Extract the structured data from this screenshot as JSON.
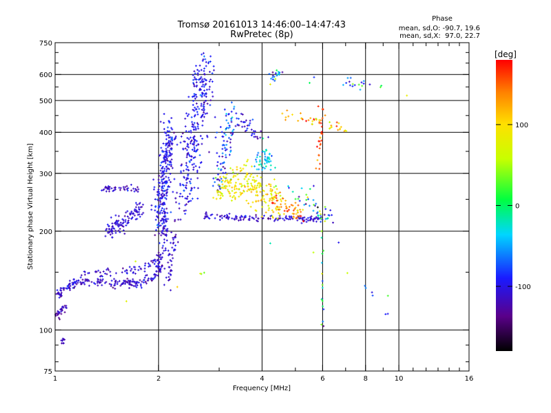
{
  "chart_data": {
    "type": "scatter",
    "title": "Tromsø 20161013 14:46:00–14:47:43",
    "subtitle": "RwPretec (8p)",
    "xlabel": "Frequency [MHz]",
    "ylabel": "Stationary phase Virtual Height [km]",
    "x_scale": "log",
    "y_scale": "log",
    "xlim": [
      1,
      16
    ],
    "ylim": [
      75,
      750
    ],
    "x_ticks": [
      1,
      2,
      4,
      6,
      8,
      10,
      16
    ],
    "x_tick_labels": [
      "1",
      "2",
      "4",
      "6",
      "8",
      "10",
      "16"
    ],
    "x_minor_ticks": [
      3,
      5,
      7,
      9,
      11,
      12,
      13,
      14,
      15
    ],
    "y_ticks": [
      75,
      100,
      200,
      300,
      400,
      500,
      600,
      750
    ],
    "y_tick_labels": [
      "75",
      "100",
      "200",
      "300",
      "400",
      "500",
      "600",
      "750"
    ],
    "y_minor_ticks": [
      80,
      90,
      150,
      250,
      350,
      450,
      550,
      650,
      700
    ],
    "grid_x": [
      2,
      4,
      6,
      8,
      10
    ],
    "grid_y": [
      100,
      200,
      300,
      400,
      500,
      600
    ],
    "phase_stats": {
      "header": "Phase",
      "line_o": "mean, sd,O: -90.7, 19.6",
      "line_x": "mean, sd,X:  97.0, 22.7"
    },
    "colorbar": {
      "label": "[deg]",
      "range": [
        -180,
        180
      ],
      "ticks": [
        100,
        0,
        -100
      ],
      "tick_labels": [
        "100",
        "0",
        "-100"
      ]
    },
    "traces": [
      {
        "name": "low-O-trace",
        "x": [
          1.01,
          1.04,
          1.08,
          1.12,
          1.18,
          1.25,
          1.35,
          1.45,
          1.55,
          1.65,
          1.75,
          1.85,
          1.92,
          1.97,
          2.0,
          2.02,
          2.04,
          2.06,
          2.07,
          2.08,
          2.09
        ],
        "y": [
          128,
          130,
          135,
          140,
          140,
          140,
          140,
          139,
          139,
          139,
          139,
          141,
          144,
          147,
          152,
          158,
          168,
          180,
          195,
          210,
          230
        ],
        "phase": -110,
        "sd": 12,
        "n": 260,
        "jx": 0.015,
        "jy": 0.015
      },
      {
        "name": "low-O-start",
        "x": [
          1.01,
          1.03,
          1.05,
          1.08
        ],
        "y": [
          110,
          112,
          115,
          119
        ],
        "phase": -120,
        "sd": 12,
        "n": 30,
        "jx": 0.01,
        "jy": 0.02
      },
      {
        "name": "low-O-dots",
        "x": [
          1.05,
          1.06,
          1.07
        ],
        "y": [
          91,
          93,
          95
        ],
        "phase": -120,
        "sd": 8,
        "n": 10,
        "jx": 0.005,
        "jy": 0.01
      },
      {
        "name": "upper-envelope",
        "x": [
          1.1,
          1.2,
          1.3,
          1.4,
          1.5,
          1.6,
          1.7,
          1.8,
          1.9,
          1.96,
          2.0
        ],
        "y": [
          137,
          145,
          150,
          150,
          150,
          151,
          152,
          155,
          158,
          162,
          168
        ],
        "phase": -110,
        "sd": 12,
        "n": 70,
        "jx": 0.01,
        "jy": 0.015
      },
      {
        "name": "E-cusp-O",
        "x": [
          2.12,
          2.17,
          2.22,
          2.28
        ],
        "y": [
          140,
          160,
          190,
          240
        ],
        "phase": -110,
        "sd": 12,
        "n": 45,
        "jx": 0.01,
        "jy": 0.04
      },
      {
        "name": "blob-210",
        "x": [
          1.42,
          1.46,
          1.52,
          1.58,
          1.65,
          1.72,
          1.8
        ],
        "y": [
          200,
          204,
          208,
          212,
          218,
          226,
          236
        ],
        "phase": -110,
        "sd": 10,
        "n": 110,
        "jx": 0.015,
        "jy": 0.03
      },
      {
        "name": "blob-270",
        "x": [
          1.38,
          1.45,
          1.55,
          1.65,
          1.75
        ],
        "y": [
          268,
          270,
          270,
          270,
          268
        ],
        "phase": -115,
        "sd": 10,
        "n": 45,
        "jx": 0.01,
        "jy": 0.01
      },
      {
        "name": "F-cusp-O-lower",
        "x": [
          2.0,
          2.04,
          2.08,
          2.12,
          2.16
        ],
        "y": [
          210,
          250,
          300,
          350,
          400
        ],
        "phase": -100,
        "sd": 15,
        "n": 260,
        "jx": 0.025,
        "jy": 0.06
      },
      {
        "name": "F-cusp-O-upper",
        "x": [
          2.4,
          2.45,
          2.5,
          2.55,
          2.6,
          2.68,
          2.75
        ],
        "y": [
          240,
          300,
          360,
          420,
          500,
          580,
          650
        ],
        "phase": -100,
        "sd": 15,
        "n": 300,
        "jx": 0.04,
        "jy": 0.06
      },
      {
        "name": "F-cusp-X-base",
        "x": [
          2.7,
          3.0,
          3.3,
          3.6,
          4.0,
          4.5,
          5.0,
          5.5,
          6.0
        ],
        "y": [
          222,
          222,
          220,
          219,
          219,
          218,
          218,
          218,
          218
        ],
        "phase": -110,
        "sd": 12,
        "n": 140,
        "jx": 0.01,
        "jy": 0.01
      },
      {
        "name": "F-cusp-X-top",
        "x": [
          3.0,
          3.05,
          3.1,
          3.15,
          3.2,
          3.3
        ],
        "y": [
          260,
          300,
          340,
          380,
          420,
          480
        ],
        "phase": -80,
        "sd": 30,
        "n": 90,
        "jx": 0.03,
        "jy": 0.05
      },
      {
        "name": "yellow-X-band",
        "x": [
          3.0,
          3.2,
          3.4,
          3.6,
          3.8,
          4.0,
          4.3,
          4.5
        ],
        "y": [
          260,
          270,
          280,
          290,
          270,
          260,
          250,
          245
        ],
        "phase": 90,
        "sd": 20,
        "n": 220,
        "jx": 0.03,
        "jy": 0.06
      },
      {
        "name": "orange-F2-X",
        "x": [
          4.3,
          4.6,
          5.0,
          5.3
        ],
        "y": [
          250,
          240,
          230,
          225
        ],
        "phase": 140,
        "sd": 25,
        "n": 50,
        "jx": 0.02,
        "jy": 0.03
      },
      {
        "name": "cyan-X-cluster",
        "x": [
          3.9,
          4.0,
          4.1,
          4.2
        ],
        "y": [
          320,
          330,
          340,
          310
        ],
        "phase": -40,
        "sd": 25,
        "n": 50,
        "jx": 0.02,
        "jy": 0.04
      },
      {
        "name": "high-blue-line",
        "x": [
          3.2,
          3.4,
          3.6,
          3.8,
          4.0
        ],
        "y": [
          445,
          440,
          420,
          400,
          380
        ],
        "phase": -100,
        "sd": 20,
        "n": 40,
        "jx": 0.02,
        "jy": 0.02
      },
      {
        "name": "upper-X-line",
        "x": [
          4.6,
          5.0,
          5.5,
          6.0,
          6.5,
          7.0
        ],
        "y": [
          450,
          440,
          435,
          430,
          420,
          410
        ],
        "phase": 110,
        "sd": 30,
        "n": 40,
        "jx": 0.01,
        "jy": 0.015
      },
      {
        "name": "sporadic-high",
        "x": [
          4.2,
          4.3,
          4.4,
          4.5,
          4.6,
          7.0,
          7.3,
          7.6,
          8.0,
          9.0
        ],
        "y": [
          560,
          580,
          600,
          610,
          600,
          560,
          560,
          565,
          560,
          550
        ],
        "phase": -40,
        "sd": 60,
        "n": 40,
        "jx": 0.02,
        "jy": 0.02
      },
      {
        "name": "mixed-mid",
        "x": [
          5.0,
          5.3,
          5.6,
          5.9,
          6.2
        ],
        "y": [
          260,
          250,
          240,
          230,
          220
        ],
        "phase": -60,
        "sd": 60,
        "n": 45,
        "jx": 0.03,
        "jy": 0.04
      },
      {
        "name": "red-verticals",
        "x": [
          5.8,
          5.9,
          6.0
        ],
        "y": [
          320,
          380,
          440
        ],
        "phase": 150,
        "sd": 20,
        "n": 25,
        "jx": 0.01,
        "jy": 0.08
      },
      {
        "name": "column-6mhz",
        "x": [
          6.0,
          6.0,
          6.0,
          6.0,
          6.0
        ],
        "y": [
          90,
          110,
          130,
          160,
          190
        ],
        "phase": -20,
        "sd": 50,
        "n": 18,
        "jx": 0.005,
        "jy": 0.06
      },
      {
        "name": "isolated",
        "x": [
          3.9,
          5.5,
          6.6,
          7.0,
          8.3,
          9.3,
          10.2,
          11.0,
          12.2,
          12.4,
          12.5,
          12.6
        ],
        "y": [
          190,
          170,
          190,
          150,
          130,
          110,
          520,
          520,
          580,
          380,
          110,
          80
        ],
        "phase": -20,
        "sd": 70,
        "n": 12,
        "jx": 0.005,
        "jy": 0.005
      },
      {
        "name": "green-yellow-iso",
        "x": [
          2.65,
          2.7,
          1.58,
          1.75
        ],
        "y": [
          148,
          150,
          115,
          175
        ],
        "phase": 60,
        "sd": 30,
        "n": 6,
        "jx": 0.005,
        "jy": 0.005
      }
    ]
  }
}
